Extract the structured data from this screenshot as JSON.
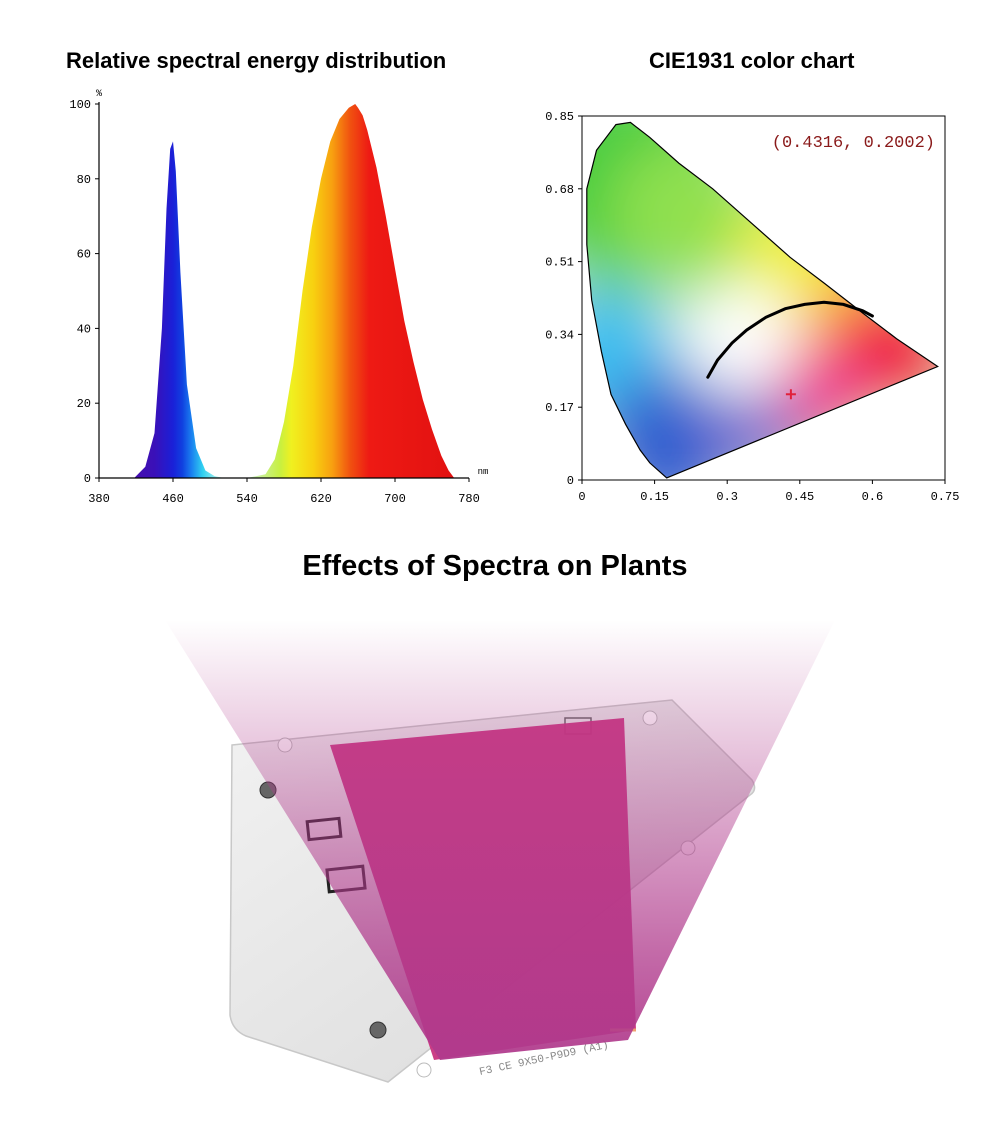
{
  "headings": {
    "spectral": "Relative spectral energy distribution",
    "cie": "CIE1931 color chart",
    "effects": "Effects of Spectra on Plants"
  },
  "chart_data": [
    {
      "type": "area",
      "title": "Relative spectral energy distribution",
      "ylabel": "%",
      "xlabel": "nm",
      "xlim": [
        380,
        780
      ],
      "ylim": [
        0,
        100
      ],
      "xticks": [
        380,
        460,
        540,
        620,
        700,
        780
      ],
      "yticks": [
        0,
        20,
        40,
        60,
        80,
        100
      ],
      "grid": false,
      "series": [
        {
          "x": [
            418,
            430,
            440,
            448,
            453,
            457,
            460,
            463,
            468,
            475,
            485,
            495,
            505,
            515,
            540,
            560,
            570,
            580,
            590,
            600,
            610,
            620,
            630,
            640,
            650,
            657,
            660,
            665,
            670,
            680,
            690,
            700,
            710,
            720,
            730,
            740,
            750,
            758,
            764
          ],
          "y": [
            0,
            3,
            12,
            40,
            72,
            88,
            90,
            82,
            55,
            25,
            8,
            2,
            0.5,
            0,
            0,
            1,
            5,
            15,
            30,
            50,
            67,
            80,
            90,
            96,
            99,
            100,
            99,
            97,
            93,
            83,
            70,
            56,
            42,
            31,
            21,
            13,
            6,
            2,
            0
          ]
        }
      ]
    },
    {
      "type": "scatter",
      "title": "CIE1931 color chart",
      "xlim": [
        0,
        0.75
      ],
      "ylim": [
        0,
        0.85
      ],
      "xticks": [
        "0",
        "0.15",
        "0.3",
        "0.45",
        "0.6",
        "0.75"
      ],
      "yticks": [
        "0",
        "0.17",
        "0.34",
        "0.51",
        "0.68",
        "0.85"
      ],
      "annotation": "(0.4316, 0.2002)",
      "point": {
        "x": 0.4316,
        "y": 0.2002,
        "color": "#e0203a"
      },
      "locus": [
        [
          0.175,
          0.005
        ],
        [
          0.16,
          0.02
        ],
        [
          0.14,
          0.04
        ],
        [
          0.12,
          0.07
        ],
        [
          0.09,
          0.13
        ],
        [
          0.06,
          0.2
        ],
        [
          0.04,
          0.3
        ],
        [
          0.02,
          0.42
        ],
        [
          0.01,
          0.55
        ],
        [
          0.01,
          0.68
        ],
        [
          0.03,
          0.77
        ],
        [
          0.07,
          0.83
        ],
        [
          0.1,
          0.835
        ],
        [
          0.14,
          0.8
        ],
        [
          0.2,
          0.74
        ],
        [
          0.27,
          0.68
        ],
        [
          0.35,
          0.6
        ],
        [
          0.43,
          0.52
        ],
        [
          0.5,
          0.46
        ],
        [
          0.58,
          0.39
        ],
        [
          0.65,
          0.33
        ],
        [
          0.735,
          0.265
        ]
      ],
      "planckian": [
        [
          0.26,
          0.24
        ],
        [
          0.28,
          0.28
        ],
        [
          0.31,
          0.32
        ],
        [
          0.34,
          0.35
        ],
        [
          0.38,
          0.38
        ],
        [
          0.42,
          0.4
        ],
        [
          0.46,
          0.41
        ],
        [
          0.5,
          0.415
        ],
        [
          0.54,
          0.41
        ],
        [
          0.58,
          0.395
        ],
        [
          0.6,
          0.383
        ]
      ]
    }
  ],
  "plant_image": {
    "beam_color": "#b03a8c",
    "board_text": "F3 CE  9X50-P9D9 (A1)"
  }
}
